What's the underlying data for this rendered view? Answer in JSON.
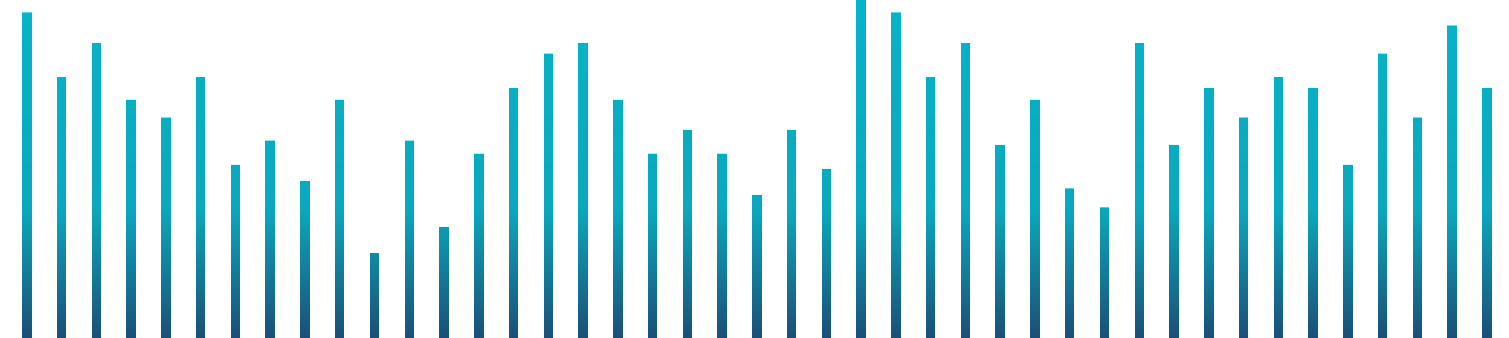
{
  "chart_data": {
    "type": "bar",
    "title": "",
    "xlabel": "",
    "ylabel": "",
    "ylim": [
      0,
      1
    ],
    "grid": false,
    "legend": "none",
    "values": [
      0.964,
      0.772,
      0.873,
      0.706,
      0.653,
      0.772,
      0.512,
      0.585,
      0.465,
      0.706,
      0.25,
      0.585,
      0.329,
      0.545,
      0.74,
      0.842,
      0.873,
      0.706,
      0.545,
      0.617,
      0.545,
      0.423,
      0.617,
      0.5,
      1.0,
      0.964,
      0.772,
      0.873,
      0.572,
      0.706,
      0.443,
      0.387,
      0.873,
      0.572,
      0.74,
      0.653,
      0.772,
      0.74,
      0.512,
      0.842,
      0.653,
      0.924,
      0.74
    ],
    "colors": {
      "top": "#06b4c8",
      "mid": "#0aa8bd",
      "bottom": "#1a4f78"
    }
  }
}
